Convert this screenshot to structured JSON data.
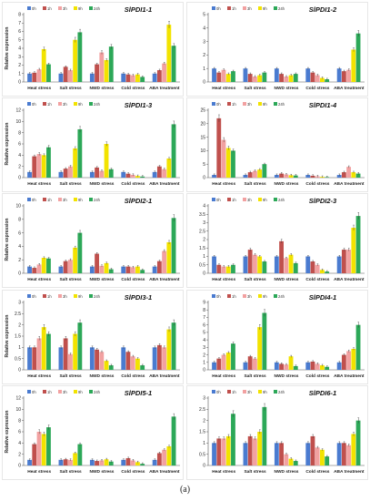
{
  "caption": "(a)",
  "legend_labels": [
    "0h",
    "1h",
    "3h",
    "9h",
    "24h"
  ],
  "colors": [
    "#4a7bd0",
    "#c0504d",
    "#f2a1a1",
    "#f2e300",
    "#2ca858"
  ],
  "chart_data": [
    {
      "type": "bar",
      "title": "SlPDI1-1",
      "ylabel": "Relative expression",
      "ylim": [
        0,
        8
      ],
      "yticks": [
        0,
        1,
        2,
        3,
        4,
        5,
        6,
        7,
        8
      ],
      "categories": [
        "Heat stress",
        "Salt stress",
        "NWD stress",
        "Cold stress",
        "ABA treatment"
      ],
      "series": [
        {
          "name": "0h",
          "values": [
            1.0,
            1.0,
            1.0,
            1.0,
            1.0
          ]
        },
        {
          "name": "1h",
          "values": [
            1.1,
            1.8,
            2.1,
            0.9,
            1.4
          ]
        },
        {
          "name": "3h",
          "values": [
            1.5,
            1.4,
            3.5,
            0.8,
            2.2
          ]
        },
        {
          "name": "9h",
          "values": [
            3.9,
            5.0,
            2.6,
            0.9,
            6.8
          ]
        },
        {
          "name": "24h",
          "values": [
            2.1,
            5.9,
            4.2,
            0.6,
            4.3
          ]
        }
      ]
    },
    {
      "type": "bar",
      "title": "SlPDI1-2",
      "ylabel": "",
      "ylim": [
        0,
        5
      ],
      "yticks": [
        0,
        1,
        2,
        3,
        4,
        5
      ],
      "categories": [
        "Heat stress",
        "Salt stress",
        "NWD stress",
        "Cold stress",
        "ABA treatment"
      ],
      "series": [
        {
          "name": "0h",
          "values": [
            1.0,
            1.0,
            1.0,
            1.0,
            1.0
          ]
        },
        {
          "name": "1h",
          "values": [
            0.7,
            0.6,
            0.6,
            0.7,
            0.8
          ]
        },
        {
          "name": "3h",
          "values": [
            0.9,
            0.4,
            0.4,
            0.5,
            0.9
          ]
        },
        {
          "name": "9h",
          "values": [
            0.6,
            0.5,
            0.5,
            0.3,
            2.4
          ]
        },
        {
          "name": "24h",
          "values": [
            0.8,
            0.7,
            0.6,
            0.2,
            3.6
          ]
        }
      ]
    },
    {
      "type": "bar",
      "title": "SlPDI1-3",
      "ylabel": "Relative expression",
      "ylim": [
        0,
        12
      ],
      "yticks": [
        0,
        2,
        4,
        6,
        8,
        10,
        12
      ],
      "categories": [
        "Heat stress",
        "Salt stress",
        "NWD stress",
        "Cold stress",
        "ABA treatment"
      ],
      "series": [
        {
          "name": "0h",
          "values": [
            1.0,
            1.0,
            1.0,
            1.0,
            1.0
          ]
        },
        {
          "name": "1h",
          "values": [
            3.8,
            1.6,
            1.8,
            0.7,
            2.0
          ]
        },
        {
          "name": "3h",
          "values": [
            4.2,
            2.0,
            1.2,
            0.5,
            1.5
          ]
        },
        {
          "name": "9h",
          "values": [
            4.0,
            5.2,
            6.0,
            0.3,
            3.4
          ]
        },
        {
          "name": "24h",
          "values": [
            5.4,
            8.6,
            1.5,
            0.2,
            9.5
          ]
        }
      ]
    },
    {
      "type": "bar",
      "title": "SlPDI1-4",
      "ylabel": "",
      "ylim": [
        0,
        25
      ],
      "yticks": [
        0,
        5,
        10,
        15,
        20,
        25
      ],
      "categories": [
        "Heat stress",
        "Salt stress",
        "NWD stress",
        "Cold stress",
        "ABA treatment"
      ],
      "series": [
        {
          "name": "0h",
          "values": [
            1.0,
            1.0,
            1.0,
            1.0,
            1.0
          ]
        },
        {
          "name": "1h",
          "values": [
            22.0,
            2.0,
            1.5,
            0.7,
            2.0
          ]
        },
        {
          "name": "3h",
          "values": [
            14.0,
            2.5,
            1.2,
            0.5,
            4.0
          ]
        },
        {
          "name": "9h",
          "values": [
            11.0,
            3.0,
            0.9,
            0.3,
            2.0
          ]
        },
        {
          "name": "24h",
          "values": [
            10.0,
            5.0,
            0.8,
            0.2,
            1.5
          ]
        }
      ]
    },
    {
      "type": "bar",
      "title": "SlPDI2-1",
      "ylabel": "Relative expression",
      "ylim": [
        0,
        10
      ],
      "yticks": [
        0,
        2,
        4,
        6,
        8,
        10
      ],
      "categories": [
        "Heat stress",
        "Salt stress",
        "NWD stress",
        "Cold stress",
        "ABA treatment"
      ],
      "series": [
        {
          "name": "0h",
          "values": [
            1.0,
            1.0,
            1.0,
            1.0,
            1.0
          ]
        },
        {
          "name": "1h",
          "values": [
            0.8,
            1.8,
            2.9,
            1.0,
            1.8
          ]
        },
        {
          "name": "3h",
          "values": [
            1.3,
            2.0,
            1.1,
            0.9,
            3.3
          ]
        },
        {
          "name": "9h",
          "values": [
            2.3,
            3.8,
            1.5,
            1.0,
            4.6
          ]
        },
        {
          "name": "24h",
          "values": [
            2.2,
            6.0,
            0.6,
            0.5,
            8.2
          ]
        }
      ]
    },
    {
      "type": "bar",
      "title": "SlPDI2-3",
      "ylabel": "",
      "ylim": [
        0,
        4
      ],
      "yticks": [
        0,
        0.5,
        1,
        1.5,
        2,
        2.5,
        3,
        3.5,
        4
      ],
      "categories": [
        "Heat stress",
        "Salt stress",
        "NWD stress",
        "Cold stress",
        "ABA treatment"
      ],
      "series": [
        {
          "name": "0h",
          "values": [
            1.0,
            1.0,
            1.0,
            1.0,
            1.0
          ]
        },
        {
          "name": "1h",
          "values": [
            0.5,
            1.4,
            1.9,
            0.7,
            1.4
          ]
        },
        {
          "name": "3h",
          "values": [
            0.4,
            1.1,
            0.9,
            0.5,
            1.4
          ]
        },
        {
          "name": "9h",
          "values": [
            0.4,
            1.0,
            1.1,
            0.2,
            2.7
          ]
        },
        {
          "name": "24h",
          "values": [
            0.5,
            0.7,
            0.6,
            0.1,
            3.4
          ]
        }
      ]
    },
    {
      "type": "bar",
      "title": "SlPDI3-1",
      "ylabel": "Relative expression",
      "ylim": [
        0,
        3
      ],
      "yticks": [
        0,
        0.5,
        1,
        1.5,
        2,
        2.5,
        3
      ],
      "categories": [
        "Heat stress",
        "Salt stress",
        "NWD stress",
        "Cold stress",
        "ABA treatment"
      ],
      "series": [
        {
          "name": "0h",
          "values": [
            1.0,
            1.0,
            1.0,
            1.0,
            1.0
          ]
        },
        {
          "name": "1h",
          "values": [
            1.0,
            1.4,
            0.9,
            0.8,
            1.1
          ]
        },
        {
          "name": "3h",
          "values": [
            1.4,
            0.7,
            0.8,
            0.6,
            1.0
          ]
        },
        {
          "name": "9h",
          "values": [
            1.9,
            1.6,
            0.4,
            0.5,
            1.8
          ]
        },
        {
          "name": "24h",
          "values": [
            1.6,
            2.1,
            0.2,
            0.2,
            2.1
          ]
        }
      ]
    },
    {
      "type": "bar",
      "title": "SlPDI4-1",
      "ylabel": "",
      "ylim": [
        0,
        9
      ],
      "yticks": [
        0,
        1,
        2,
        3,
        4,
        5,
        6,
        7,
        8,
        9
      ],
      "categories": [
        "Heat stress",
        "Salt stress",
        "NWD stress",
        "Cold stress",
        "ABA treatment"
      ],
      "series": [
        {
          "name": "0h",
          "values": [
            1.0,
            1.0,
            1.0,
            1.0,
            1.0
          ]
        },
        {
          "name": "1h",
          "values": [
            1.5,
            1.8,
            0.8,
            1.1,
            2.0
          ]
        },
        {
          "name": "3h",
          "values": [
            2.0,
            1.5,
            0.7,
            0.8,
            2.5
          ]
        },
        {
          "name": "9h",
          "values": [
            2.3,
            5.7,
            1.8,
            0.6,
            2.8
          ]
        },
        {
          "name": "24h",
          "values": [
            3.5,
            7.6,
            0.5,
            0.4,
            6.0
          ]
        }
      ]
    },
    {
      "type": "bar",
      "title": "SlPDI5-1",
      "ylabel": "Relative expression",
      "ylim": [
        0,
        12
      ],
      "yticks": [
        0,
        2,
        4,
        6,
        8,
        10,
        12
      ],
      "categories": [
        "Heat stress",
        "Salt stress",
        "NWD stress",
        "Cold stress",
        "ABA treatment"
      ],
      "series": [
        {
          "name": "0h",
          "values": [
            1.0,
            1.0,
            1.0,
            1.0,
            1.0
          ]
        },
        {
          "name": "1h",
          "values": [
            3.8,
            1.1,
            0.8,
            1.3,
            2.2
          ]
        },
        {
          "name": "3h",
          "values": [
            6.0,
            1.0,
            0.9,
            0.9,
            2.8
          ]
        },
        {
          "name": "9h",
          "values": [
            5.6,
            2.2,
            1.1,
            0.6,
            3.4
          ]
        },
        {
          "name": "24h",
          "values": [
            6.8,
            3.8,
            0.7,
            0.3,
            8.7
          ]
        }
      ]
    },
    {
      "type": "bar",
      "title": "SlPDI6-1",
      "ylabel": "",
      "ylim": [
        0,
        3
      ],
      "yticks": [
        0,
        0.5,
        1,
        1.5,
        2,
        2.5,
        3
      ],
      "categories": [
        "Heat stress",
        "Salt stress",
        "NWD stress",
        "Cold stress",
        "ABA treatment"
      ],
      "series": [
        {
          "name": "0h",
          "values": [
            1.0,
            1.0,
            1.0,
            1.0,
            1.0
          ]
        },
        {
          "name": "1h",
          "values": [
            1.2,
            1.3,
            1.0,
            1.3,
            1.0
          ]
        },
        {
          "name": "3h",
          "values": [
            1.2,
            1.2,
            0.5,
            0.8,
            0.9
          ]
        },
        {
          "name": "9h",
          "values": [
            1.3,
            1.5,
            0.3,
            0.7,
            1.4
          ]
        },
        {
          "name": "24h",
          "values": [
            2.3,
            2.6,
            0.2,
            0.4,
            2.0
          ]
        }
      ]
    }
  ]
}
